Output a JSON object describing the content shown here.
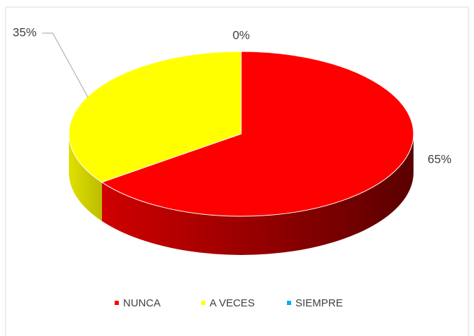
{
  "chart_data": {
    "type": "pie",
    "pie_3d": true,
    "categories": [
      "NUNCA",
      "A VECES",
      "SIEMPRE"
    ],
    "values": [
      65,
      35,
      0
    ],
    "value_labels": [
      "65%",
      "35%",
      "0%"
    ],
    "colors": [
      "#ff0000",
      "#ffff00",
      "#00b0f0"
    ],
    "legend": "bottom"
  }
}
